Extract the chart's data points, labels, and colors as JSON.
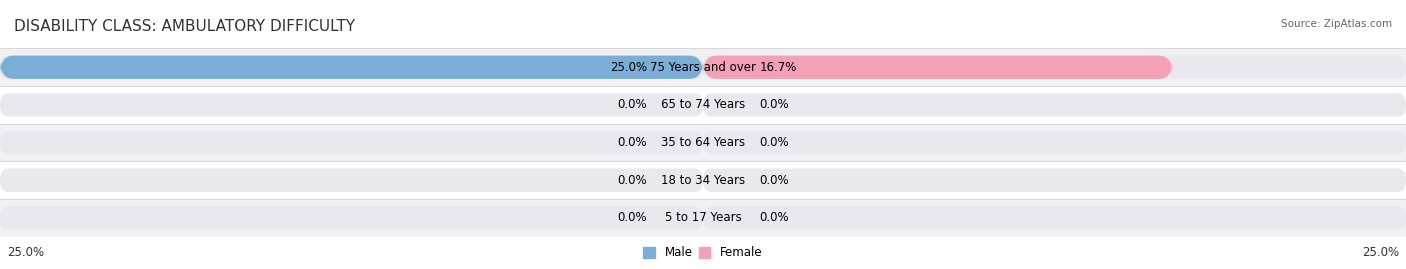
{
  "title": "DISABILITY CLASS: AMBULATORY DIFFICULTY",
  "source": "Source: ZipAtlas.com",
  "categories": [
    "5 to 17 Years",
    "18 to 34 Years",
    "35 to 64 Years",
    "65 to 74 Years",
    "75 Years and over"
  ],
  "male_values": [
    0.0,
    0.0,
    0.0,
    0.0,
    25.0
  ],
  "female_values": [
    0.0,
    0.0,
    0.0,
    0.0,
    16.7
  ],
  "male_color": "#7aaed6",
  "female_color": "#f4a0b5",
  "bar_bg_color": "#e8e8ee",
  "max_val": 25.0,
  "axis_label_left": "25.0%",
  "axis_label_right": "25.0%",
  "title_fontsize": 11,
  "label_fontsize": 8.5,
  "category_fontsize": 8.5,
  "bar_height": 0.62,
  "background_color": "#ffffff",
  "row_bg_colors": [
    "#f0f0f5",
    "#ffffff",
    "#f0f0f5",
    "#ffffff",
    "#f0f0f5"
  ]
}
